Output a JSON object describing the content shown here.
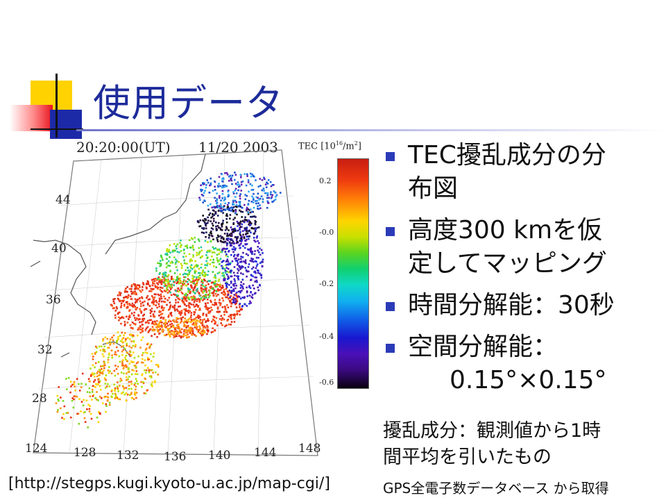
{
  "slide": {
    "title": "使用データ",
    "bullets": [
      {
        "lines": [
          "TEC擾乱成分の分",
          "布図"
        ]
      },
      {
        "lines": [
          "高度300 kmを仮",
          "定してマッピング"
        ]
      },
      {
        "lines": [
          "時間分解能：30秒"
        ]
      },
      {
        "lines": [
          "空間分解能：",
          "0.15°×0.15°"
        ]
      }
    ],
    "note": [
      "擾乱成分：観測値から1時",
      "間平均を引いたもの"
    ],
    "url_citation": "[http://stegps.kugi.kyoto-u.ac.jp/map-cgi/]",
    "source": "GPS全電子数データベース から取得"
  },
  "figure": {
    "time_label": "20:20:00(UT)",
    "date_label": "11/20 2003",
    "colorbar_title": "TEC [10",
    "colorbar_title_exp": "16",
    "colorbar_title_unit": "/m",
    "colorbar_title_unit_exp": "2",
    "colorbar_title_close": "]",
    "colorbar_ticks": [
      "0.2",
      "-0.0",
      "-0.2",
      "-0.4",
      "-0.6"
    ],
    "lat_labels": [
      "44",
      "40",
      "36",
      "32",
      "28"
    ],
    "lon_labels": [
      "124",
      "128",
      "132",
      "136",
      "140",
      "144",
      "148"
    ]
  }
}
